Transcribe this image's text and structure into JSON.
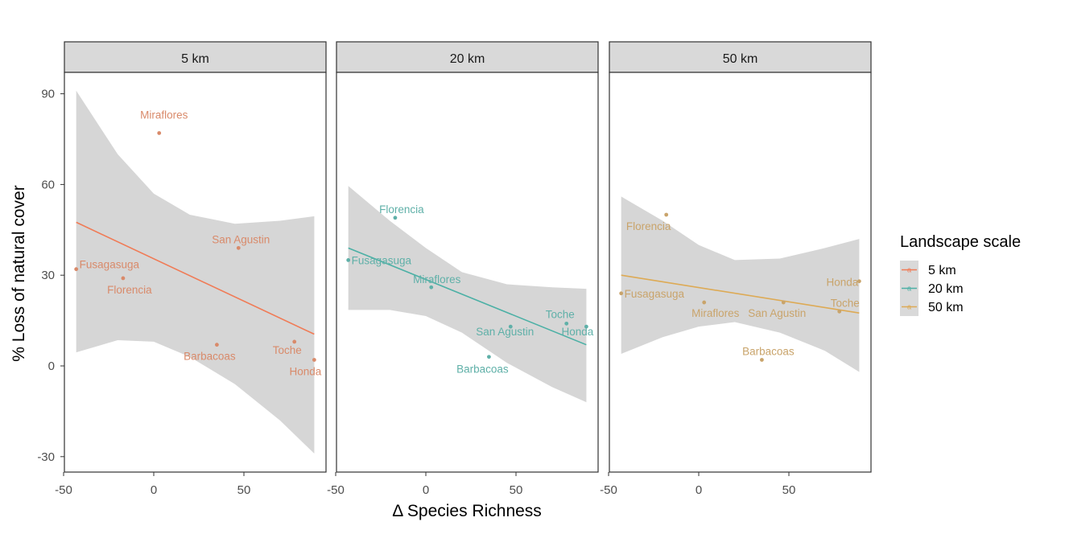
{
  "chart_data": {
    "type": "scatter",
    "facets": [
      "5 km",
      "20 km",
      "50 km"
    ],
    "xlabel": "Δ Species Richness",
    "ylabel": "% Loss of natural cover",
    "xlim": [
      -50,
      100
    ],
    "ylim": [
      -35,
      105
    ],
    "x_ticks": [
      -50,
      0,
      50
    ],
    "y_ticks": [
      -30,
      0,
      30,
      60,
      90
    ],
    "x_tick_labels": [
      "-50",
      "0",
      "50"
    ],
    "y_tick_labels": [
      "-30",
      "0",
      "30",
      "60",
      "90"
    ],
    "legend": {
      "title": "Landscape scale",
      "position": "right",
      "entries": [
        {
          "label": "5 km",
          "color": "#F07B56"
        },
        {
          "label": "20 km",
          "color": "#4BB0A5"
        },
        {
          "label": "50 km",
          "color": "#DDAA55"
        }
      ]
    },
    "series": [
      {
        "name": "5 km",
        "color": "#F07B56",
        "point_color": "#D98A6A",
        "points": [
          {
            "label": "Miraflores",
            "x": 3,
            "y": 77
          },
          {
            "label": "San Agustin",
            "x": 47,
            "y": 39
          },
          {
            "label": "Fusagasuga",
            "x": -43,
            "y": 32
          },
          {
            "label": "Florencia",
            "x": -17,
            "y": 29
          },
          {
            "label": "Barbacoas",
            "x": 35,
            "y": 7
          },
          {
            "label": "Toche",
            "x": 78,
            "y": 8
          },
          {
            "label": "Honda",
            "x": 89,
            "y": 2
          }
        ],
        "fit": {
          "x": [
            -43,
            89
          ],
          "y": [
            47.5,
            10.5
          ]
        },
        "band": {
          "x": [
            -43,
            -20,
            0,
            20,
            45,
            70,
            89
          ],
          "upper": [
            91,
            70,
            57,
            50,
            47,
            48,
            49.5
          ],
          "lower": [
            4.5,
            8.5,
            8,
            3,
            -6,
            -18,
            -29
          ]
        }
      },
      {
        "name": "20 km",
        "color": "#4BB0A5",
        "point_color": "#5FB0A8",
        "points": [
          {
            "label": "Florencia",
            "x": -17,
            "y": 49
          },
          {
            "label": "Fusagasuga",
            "x": -43,
            "y": 35
          },
          {
            "label": "Miraflores",
            "x": 3,
            "y": 26
          },
          {
            "label": "Toche",
            "x": 78,
            "y": 14
          },
          {
            "label": "San Agustin",
            "x": 47,
            "y": 13
          },
          {
            "label": "Honda",
            "x": 89,
            "y": 13
          },
          {
            "label": "Barbacoas",
            "x": 35,
            "y": 3
          }
        ],
        "fit": {
          "x": [
            -43,
            89
          ],
          "y": [
            39,
            7
          ]
        },
        "band": {
          "x": [
            -43,
            -20,
            0,
            20,
            45,
            70,
            89
          ],
          "upper": [
            59.5,
            48,
            39,
            31,
            27,
            26,
            25.5
          ],
          "lower": [
            18.5,
            18.5,
            16.5,
            11,
            1,
            -7,
            -12
          ]
        }
      },
      {
        "name": "50 km",
        "color": "#DDAA55",
        "point_color": "#C9A46B",
        "points": [
          {
            "label": "Florencia",
            "x": -18,
            "y": 50
          },
          {
            "label": "Fusagasuga",
            "x": -43,
            "y": 24
          },
          {
            "label": "Miraflores",
            "x": 3,
            "y": 21
          },
          {
            "label": "San Agustin",
            "x": 47,
            "y": 21
          },
          {
            "label": "Honda",
            "x": 89,
            "y": 28
          },
          {
            "label": "Toche",
            "x": 78,
            "y": 18
          },
          {
            "label": "Barbacoas",
            "x": 35,
            "y": 2
          }
        ],
        "fit": {
          "x": [
            -43,
            89
          ],
          "y": [
            30,
            17.5
          ]
        },
        "band": {
          "x": [
            -43,
            -20,
            0,
            20,
            45,
            70,
            89
          ],
          "upper": [
            56,
            48,
            40,
            35,
            35.5,
            39,
            42
          ],
          "lower": [
            4,
            9.5,
            13,
            14.5,
            11,
            5,
            -2
          ]
        }
      }
    ]
  }
}
